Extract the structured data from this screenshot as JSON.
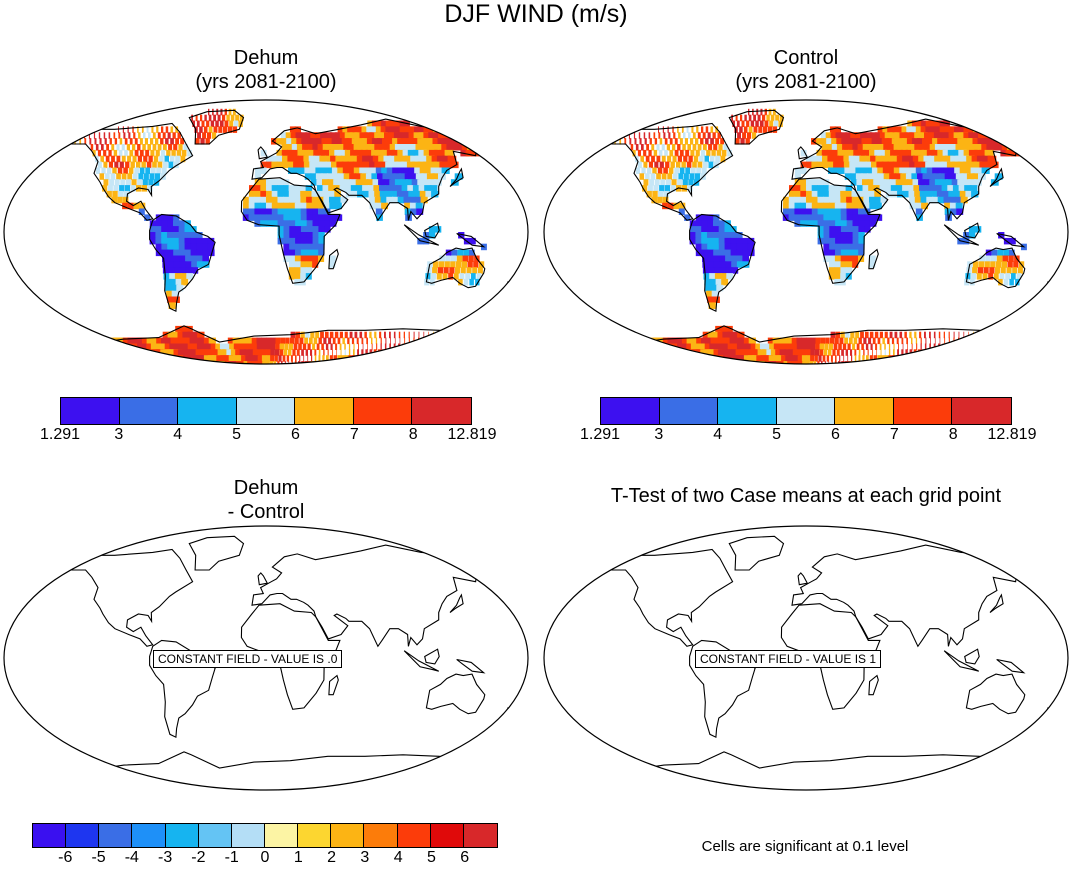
{
  "title": "DJF WIND (m/s)",
  "panels": {
    "dehum": {
      "title_line1": "Dehum",
      "title_line2": "(yrs 2081-2100)"
    },
    "control": {
      "title_line1": "Control",
      "title_line2": "(yrs 2081-2100)"
    },
    "diff": {
      "title_line1": "Dehum",
      "title_line2": "- Control",
      "constant_label": "CONSTANT FIELD - VALUE IS .0"
    },
    "ttest": {
      "title": "T-Test of two Case means at each grid point",
      "constant_label": "CONSTANT FIELD - VALUE IS 1"
    }
  },
  "colorbar_main": {
    "colors": [
      "#3d10f0",
      "#3a6ee6",
      "#16b4f0",
      "#c6e6f6",
      "#fcb414",
      "#fc3c0a",
      "#d8282a"
    ],
    "labels": [
      "1.291",
      "3",
      "4",
      "5",
      "6",
      "7",
      "8",
      "12.819"
    ]
  },
  "colorbar_diff": {
    "colors": [
      "#3a10f0",
      "#1e36f0",
      "#3a6ee6",
      "#1e90f8",
      "#16b4f0",
      "#64c4f4",
      "#b4def6",
      "#fcf4a4",
      "#fcd630",
      "#fcb414",
      "#fc7c0a",
      "#fc3c0a",
      "#e00a0a",
      "#d8282a"
    ],
    "labels": [
      "-6",
      "-5",
      "-4",
      "-3",
      "-2",
      "-1",
      "0",
      "1",
      "2",
      "3",
      "4",
      "5",
      "6"
    ]
  },
  "footnote": "Cells are significant at 0.1 level",
  "legend_colors": {
    "land_default": "#16b4f0"
  }
}
